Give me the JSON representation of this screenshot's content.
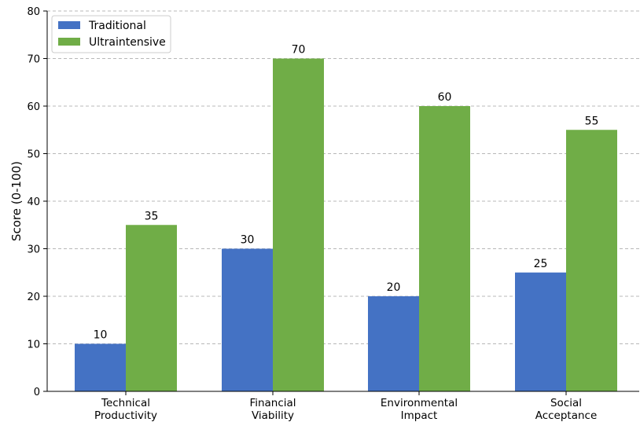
{
  "chart_data": {
    "type": "bar",
    "categories": [
      [
        "Technical",
        "Productivity"
      ],
      [
        "Financial",
        "Viability"
      ],
      [
        "Environmental",
        "Impact"
      ],
      [
        "Social",
        "Acceptance"
      ]
    ],
    "series": [
      {
        "name": "Traditional",
        "color": "#4472c4",
        "values": [
          10,
          30,
          20,
          25
        ]
      },
      {
        "name": "Ultraintensive",
        "color": "#70ad47",
        "values": [
          35,
          70,
          60,
          55
        ]
      }
    ],
    "title": "",
    "xlabel": "",
    "ylabel": "Score (0-100)",
    "ylim": [
      0,
      80
    ],
    "yticks": [
      0,
      10,
      20,
      30,
      40,
      50,
      60,
      70,
      80
    ],
    "grid": "horizontal dashed",
    "legend_position": "upper-left"
  }
}
